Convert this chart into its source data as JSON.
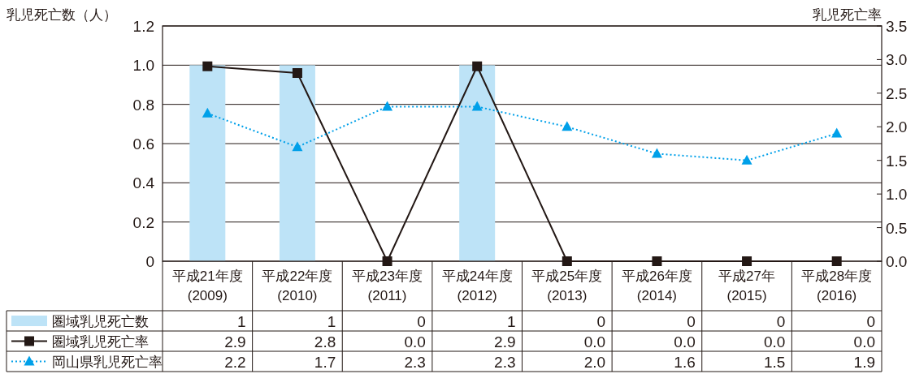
{
  "chart_data": {
    "type": "bar",
    "ylabel": "乳児死亡数（人）",
    "y2label": "乳児死亡率",
    "categories": [
      "平成21年度\n(2009)",
      "平成22年度\n(2010)",
      "平成23年度\n(2011)",
      "平成24年度\n(2012)",
      "平成25年度\n(2013)",
      "平成26年度\n(2014)",
      "平成27年\n(2015)",
      "平成28年度\n(2016)"
    ],
    "series": [
      {
        "name": "圏域乳児死亡数",
        "color": "#bde3f7",
        "values": [
          1,
          1,
          0,
          1,
          0,
          0,
          0,
          0
        ],
        "value_labels": [
          "1",
          "1",
          "0",
          "1",
          "0",
          "0",
          "0",
          "0"
        ]
      },
      {
        "name": "圏域乳児死亡率",
        "type": "line",
        "axis": "y2",
        "color": "#231815",
        "marker": "square",
        "line_style": "solid",
        "values": [
          2.9,
          2.8,
          0,
          2.9,
          0,
          0,
          0,
          0
        ],
        "value_labels": [
          "2.9",
          "2.8",
          "0.0",
          "2.9",
          "0.0",
          "0.0",
          "0.0",
          "0.0"
        ]
      },
      {
        "name": "岡山県乳児死亡率",
        "type": "line",
        "axis": "y2",
        "color": "#00a0e9",
        "marker": "triangle",
        "line_style": "dotted",
        "values": [
          2.2,
          1.7,
          2.3,
          2.3,
          2.0,
          1.6,
          1.5,
          1.9
        ],
        "value_labels": [
          "2.2",
          "1.7",
          "2.3",
          "2.3",
          "2.0",
          "1.6",
          "1.5",
          "1.9"
        ]
      }
    ],
    "ylim": [
      0,
      1.2
    ],
    "yticks": [
      0,
      0.2,
      0.4,
      0.6,
      0.8,
      {
        "value": 1,
        "label": "1.0"
      },
      1.2
    ],
    "y2lim": [
      0,
      3.5
    ],
    "y2ticks": [
      {
        "value": 0,
        "label": "0.0"
      },
      0.5,
      {
        "value": 1,
        "label": "1.0"
      },
      1.5,
      {
        "value": 2,
        "label": "2.0"
      },
      2.5,
      {
        "value": 3,
        "label": "3.0"
      },
      3.5
    ],
    "grid": "y",
    "legend": "bottom"
  }
}
